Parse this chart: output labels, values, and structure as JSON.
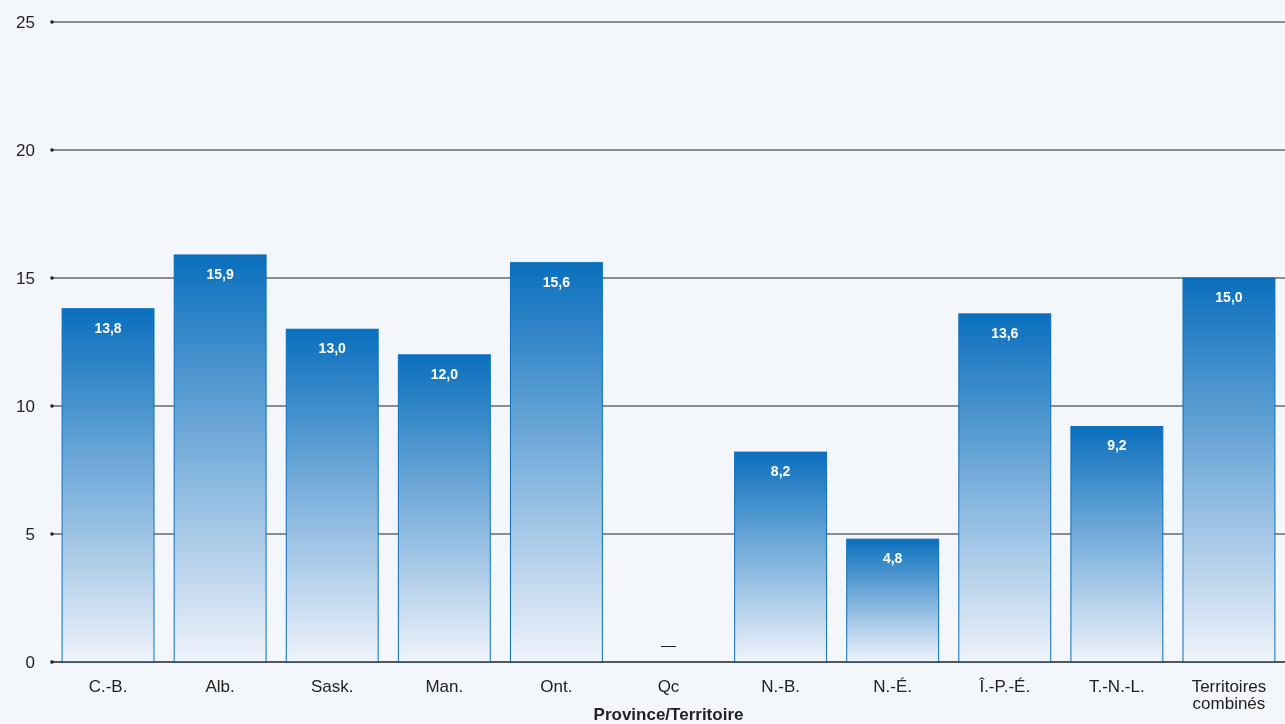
{
  "chart_data": {
    "type": "bar",
    "xlabel": "Province/Territoire",
    "categories": [
      "C.-B.",
      "Alb.",
      "Sask.",
      "Man.",
      "Ont.",
      "Qc",
      "N.-B.",
      "N.-É.",
      "Î.-P.-É.",
      "T.-N.-L.",
      "Territoires combinés"
    ],
    "values": [
      13.8,
      15.9,
      13.0,
      12.0,
      15.6,
      null,
      8.2,
      4.8,
      13.6,
      9.2,
      15.0
    ],
    "value_labels": [
      "13,8",
      "15,9",
      "13,0",
      "12,0",
      "15,6",
      "—",
      "8,2",
      "4,8",
      "13,6",
      "9,2",
      "15,0"
    ],
    "color": "#0a6fbd",
    "ylim": [
      0,
      25
    ],
    "yticks": [
      0,
      5,
      10,
      15,
      20,
      25
    ],
    "grid": "y"
  }
}
